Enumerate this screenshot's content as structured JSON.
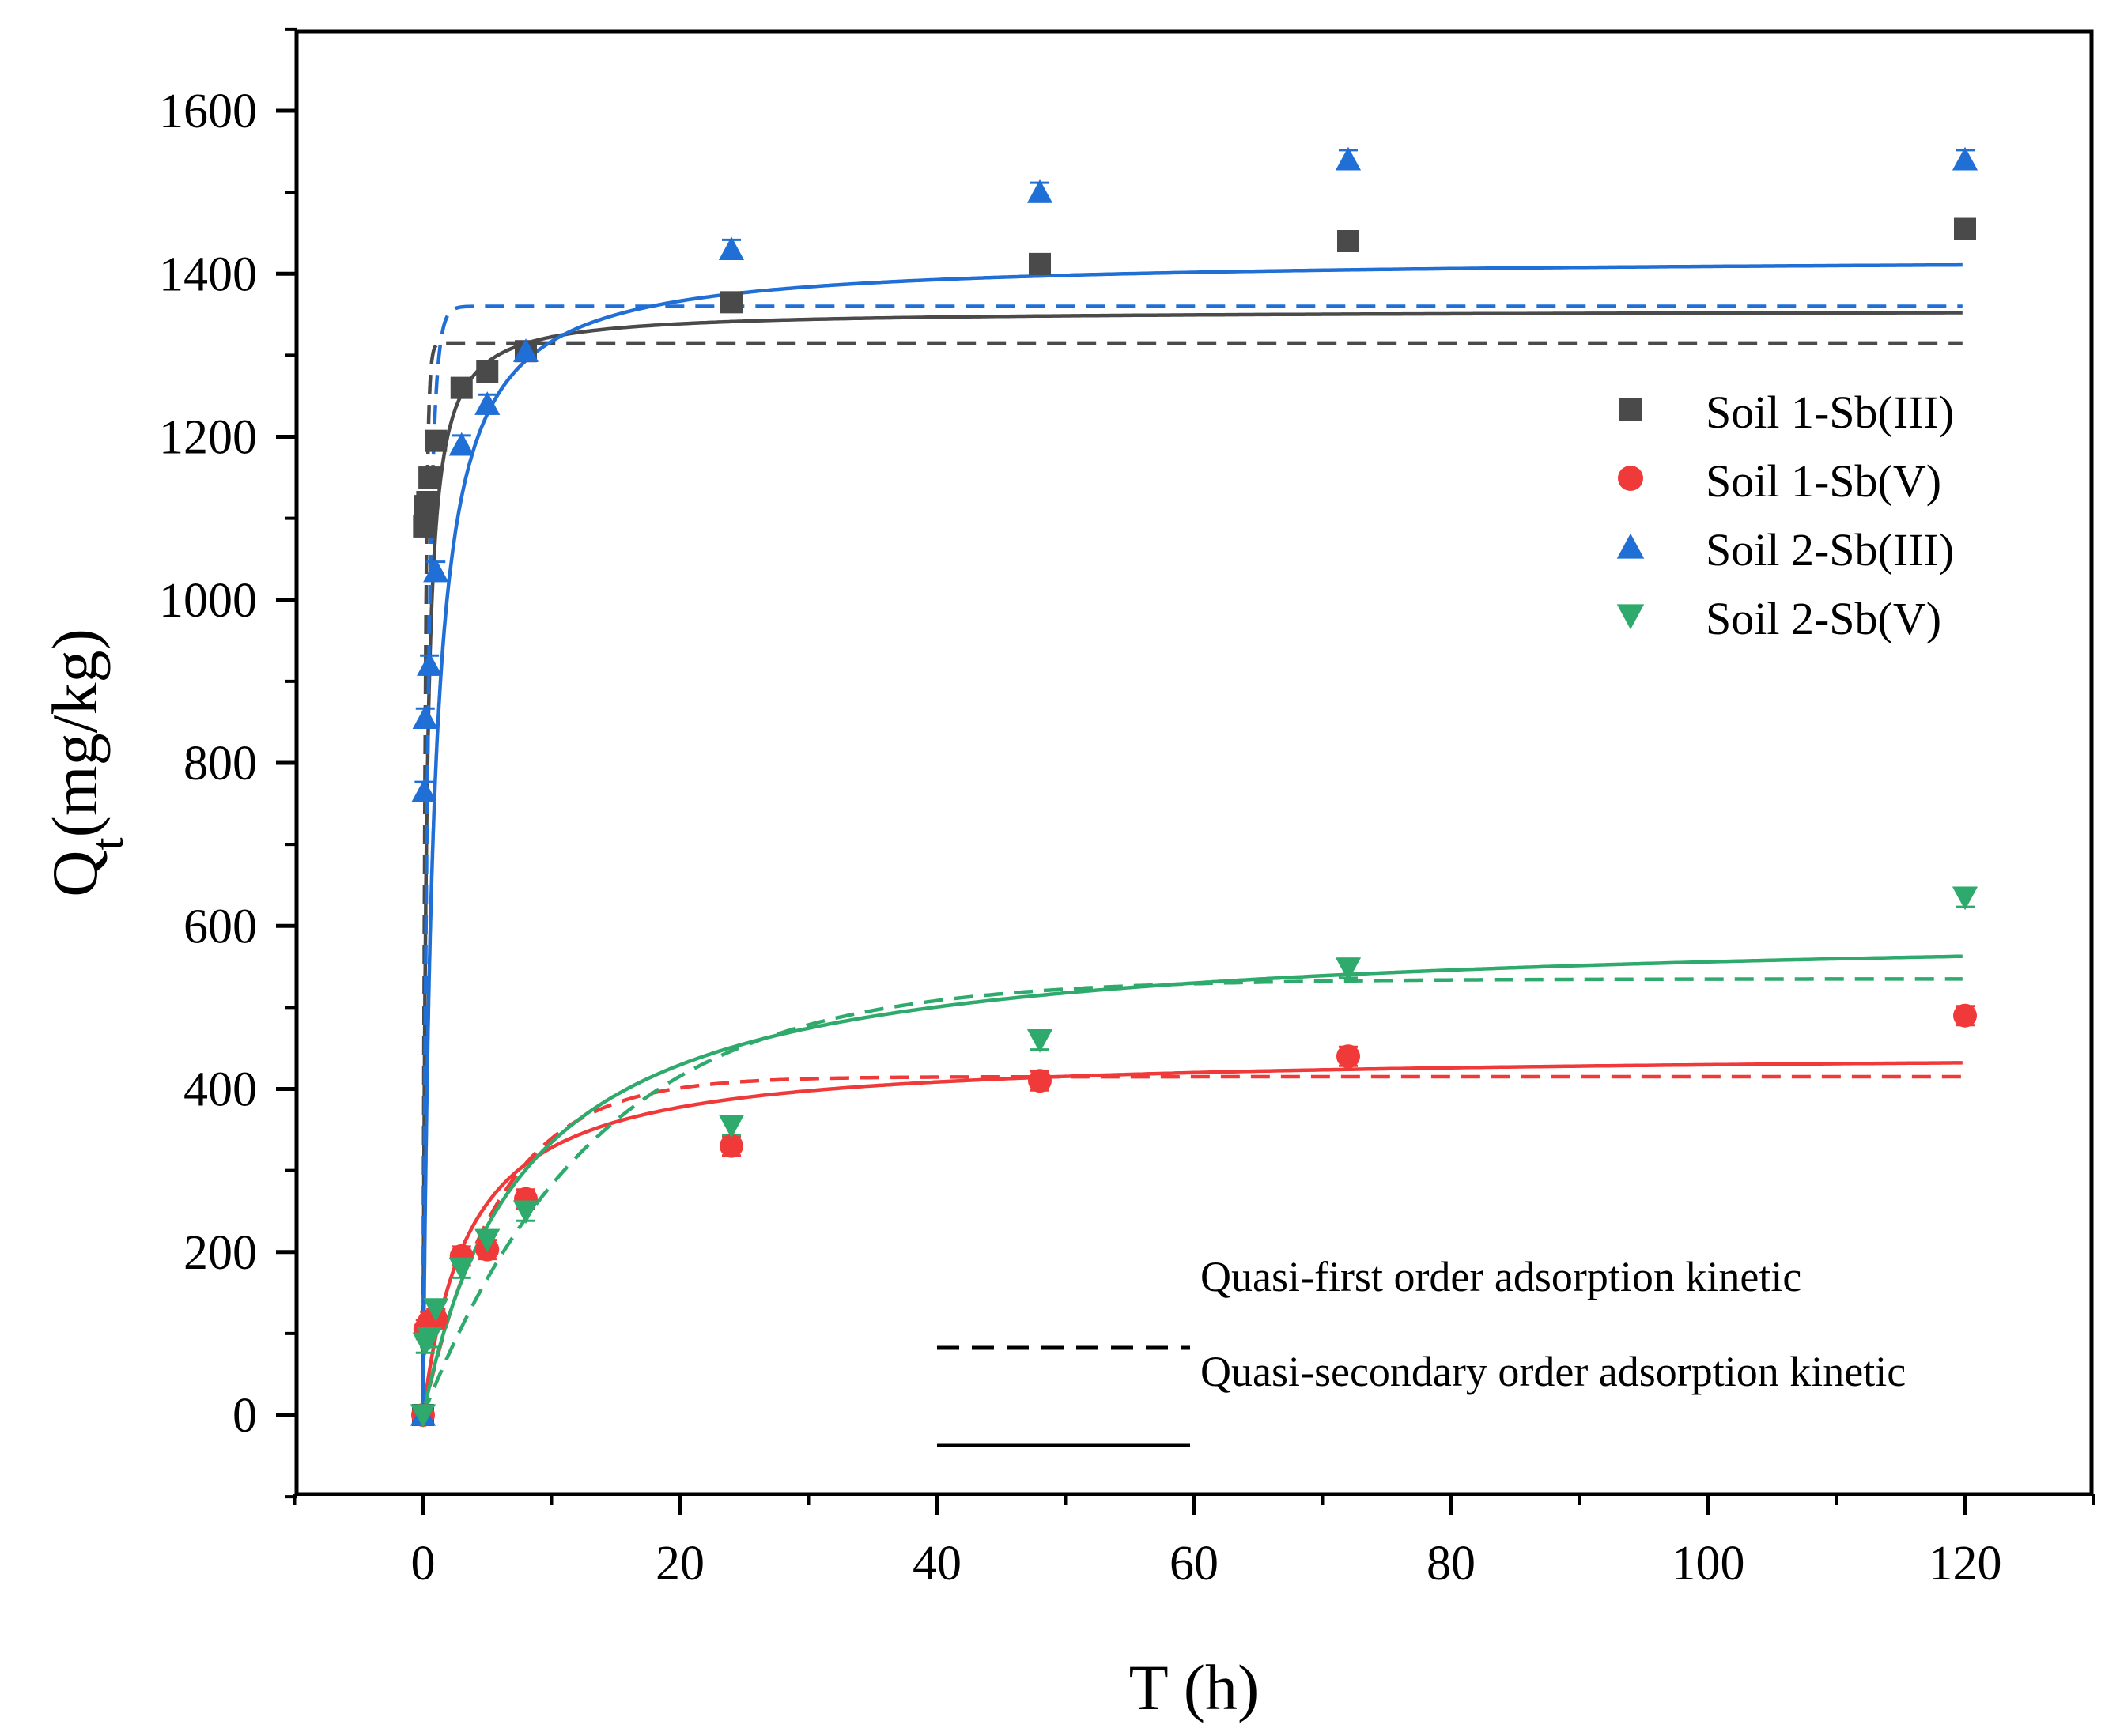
{
  "chart_data": {
    "type": "scatter",
    "xlabel": "T (h)",
    "ylabel": {
      "main": "Q",
      "subscript": "t",
      "unit": "(mg/kg)"
    },
    "xlim": [
      -10,
      130
    ],
    "ylim": [
      -100,
      1700
    ],
    "xticks": [
      0,
      20,
      40,
      60,
      80,
      100,
      120
    ],
    "xtick_labels": [
      "0",
      "20",
      "40",
      "60",
      "80",
      "100",
      "120"
    ],
    "yticks": [
      0,
      200,
      400,
      600,
      800,
      1000,
      1200,
      1400,
      1600
    ],
    "ytick_labels": [
      "0",
      "200",
      "400",
      "600",
      "800",
      "1000",
      "1200",
      "1400",
      "1600"
    ],
    "grid": false,
    "legend_position": "right",
    "series": [
      {
        "name": "Soil 1-Sb(III)",
        "marker": "square",
        "color": "#4a4a4a",
        "points": [
          {
            "x": 0,
            "y": 0
          },
          {
            "x": 0.083,
            "y": 1090
          },
          {
            "x": 0.17,
            "y": 1115
          },
          {
            "x": 0.33,
            "y": 1120
          },
          {
            "x": 0.5,
            "y": 1150
          },
          {
            "x": 1,
            "y": 1195
          },
          {
            "x": 3,
            "y": 1260
          },
          {
            "x": 5,
            "y": 1280
          },
          {
            "x": 8,
            "y": 1305
          },
          {
            "x": 24,
            "y": 1365
          },
          {
            "x": 48,
            "y": 1412
          },
          {
            "x": 72,
            "y": 1440
          },
          {
            "x": 120,
            "y": 1455
          }
        ],
        "fit_pfo": {
          "qe": 1315,
          "k": 6.0
        },
        "fit_pso": {
          "qe": 1355,
          "k": 0.003
        }
      },
      {
        "name": "Soil 1-Sb(V)",
        "marker": "circle",
        "color": "#f03a3a",
        "points": [
          {
            "x": 0,
            "y": 0
          },
          {
            "x": 0.17,
            "y": 105
          },
          {
            "x": 0.5,
            "y": 115
          },
          {
            "x": 1,
            "y": 118
          },
          {
            "x": 3,
            "y": 195
          },
          {
            "x": 5,
            "y": 203
          },
          {
            "x": 8,
            "y": 265
          },
          {
            "x": 24,
            "y": 330
          },
          {
            "x": 48,
            "y": 410
          },
          {
            "x": 72,
            "y": 440
          },
          {
            "x": 120,
            "y": 490
          }
        ],
        "fit_pfo": {
          "qe": 415,
          "k": 0.17
        },
        "fit_pso": {
          "qe": 445,
          "k": 0.00063
        }
      },
      {
        "name": "Soil 2-Sb(III)",
        "marker": "triangle-up",
        "color": "#1f6fd6",
        "points": [
          {
            "x": 0,
            "y": 0
          },
          {
            "x": 0.083,
            "y": 765
          },
          {
            "x": 0.17,
            "y": 855
          },
          {
            "x": 0.5,
            "y": 920
          },
          {
            "x": 1,
            "y": 1035
          },
          {
            "x": 3,
            "y": 1190
          },
          {
            "x": 5,
            "y": 1240
          },
          {
            "x": 8,
            "y": 1305
          },
          {
            "x": 24,
            "y": 1430
          },
          {
            "x": 48,
            "y": 1500
          },
          {
            "x": 72,
            "y": 1540
          },
          {
            "x": 120,
            "y": 1540
          }
        ],
        "fit_pfo": {
          "qe": 1360,
          "k": 2.5
        },
        "fit_pso": {
          "qe": 1420,
          "k": 0.0009
        }
      },
      {
        "name": "Soil 2-Sb(V)",
        "marker": "triangle-down",
        "color": "#2eaa6c",
        "points": [
          {
            "x": 0,
            "y": 0
          },
          {
            "x": 0.17,
            "y": 88
          },
          {
            "x": 0.5,
            "y": 95
          },
          {
            "x": 1,
            "y": 130
          },
          {
            "x": 3,
            "y": 180
          },
          {
            "x": 5,
            "y": 215
          },
          {
            "x": 8,
            "y": 250
          },
          {
            "x": 24,
            "y": 355
          },
          {
            "x": 48,
            "y": 460
          },
          {
            "x": 72,
            "y": 548
          },
          {
            "x": 120,
            "y": 635
          }
        ],
        "fit_pfo": {
          "qe": 535,
          "k": 0.075
        },
        "fit_pso": {
          "qe": 600,
          "k": 0.00021
        }
      }
    ],
    "fit_legend": [
      {
        "label": "Quasi-first order adsorption kinetic",
        "style": "dashed"
      },
      {
        "label": "Quasi-secondary order adsorption kinetic",
        "style": "solid"
      }
    ]
  }
}
